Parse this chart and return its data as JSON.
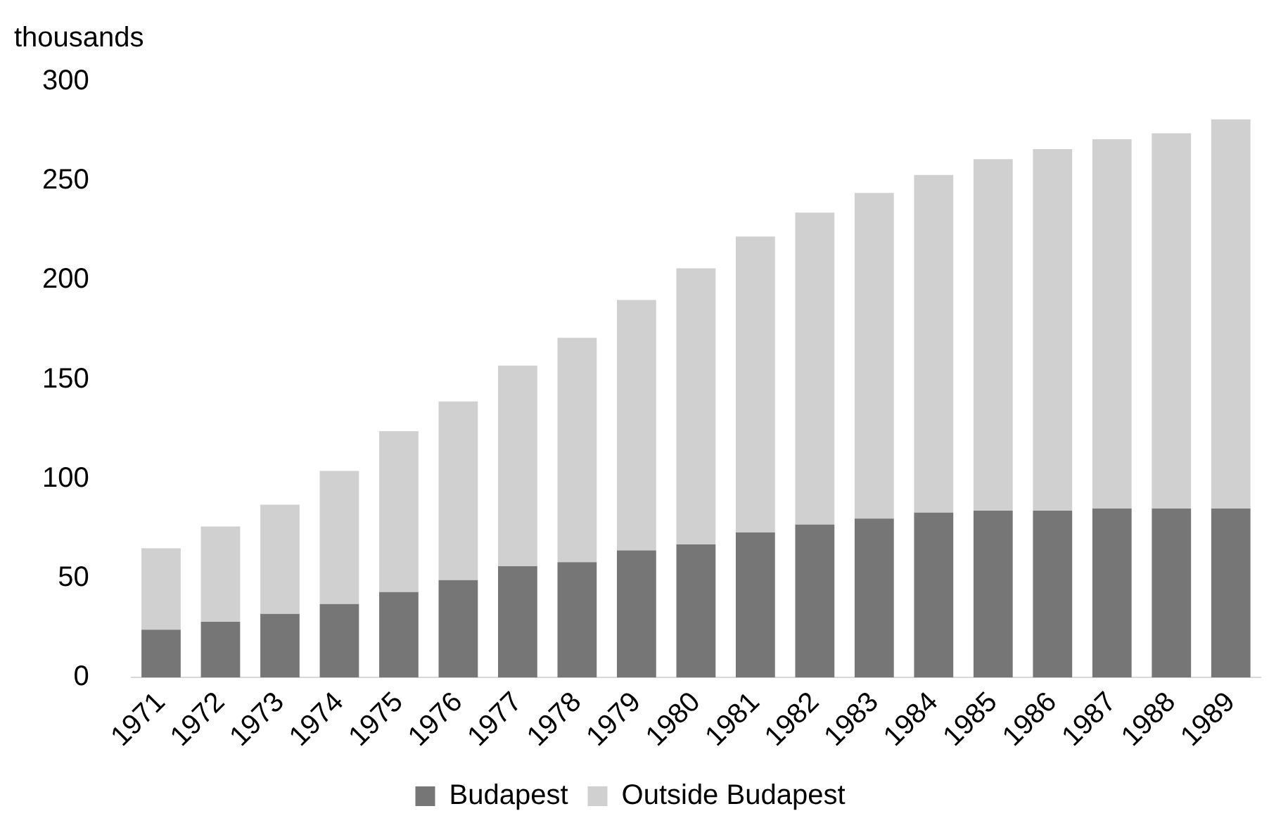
{
  "chart_data": {
    "type": "bar",
    "stacked": true,
    "ylabel": "thousands",
    "categories": [
      "1971",
      "1972",
      "1973",
      "1974",
      "1975",
      "1976",
      "1977",
      "1978",
      "1979",
      "1980",
      "1981",
      "1982",
      "1983",
      "1984",
      "1985",
      "1986",
      "1987",
      "1988",
      "1989"
    ],
    "series": [
      {
        "name": "Budapest",
        "color": "#767676",
        "values": [
          24,
          28,
          32,
          37,
          43,
          49,
          56,
          58,
          64,
          67,
          73,
          77,
          80,
          83,
          84,
          84,
          85,
          85,
          85
        ]
      },
      {
        "name": "Outside Budapest",
        "color": "#d0d0d0",
        "values": [
          41,
          48,
          55,
          67,
          81,
          90,
          101,
          113,
          126,
          139,
          149,
          157,
          164,
          170,
          177,
          182,
          186,
          189,
          196
        ]
      }
    ],
    "ylim": [
      0,
      300
    ],
    "yticks": [
      0,
      50,
      100,
      150,
      200,
      250,
      300
    ],
    "grid": false,
    "legend": "bottom"
  }
}
